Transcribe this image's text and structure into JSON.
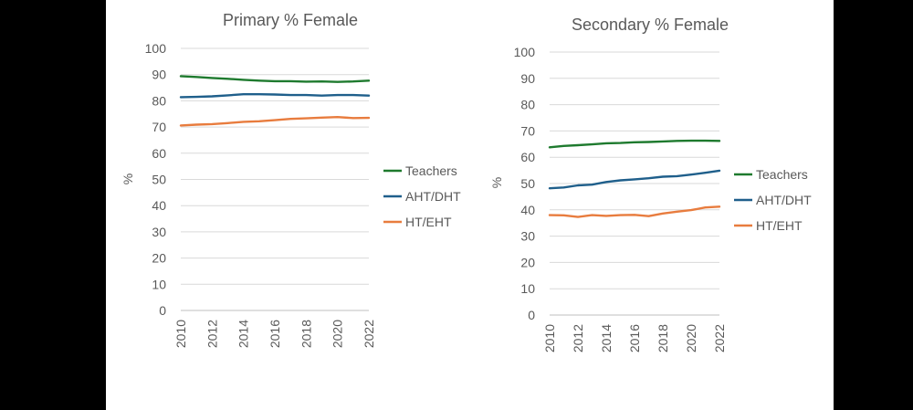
{
  "chart_data": [
    {
      "type": "line",
      "title": "Primary % Female",
      "xlabel": "",
      "ylabel": "%",
      "ylim": [
        0,
        100
      ],
      "yticks": [
        "0",
        "10",
        "20",
        "30",
        "40",
        "50",
        "60",
        "70",
        "80",
        "90",
        "100"
      ],
      "xlim": [
        2010,
        2022
      ],
      "xticks": [
        "2010",
        "2012",
        "2014",
        "2016",
        "2018",
        "2020",
        "2022"
      ],
      "grid": true,
      "legend": "right",
      "x": [
        2010,
        2011,
        2012,
        2013,
        2014,
        2015,
        2016,
        2017,
        2018,
        2019,
        2020,
        2021,
        2022
      ],
      "series": [
        {
          "name": "Teachers",
          "color": "#1e7a2e",
          "values": [
            89.4,
            89.1,
            88.7,
            88.4,
            88.0,
            87.7,
            87.5,
            87.5,
            87.3,
            87.4,
            87.2,
            87.4,
            87.7
          ]
        },
        {
          "name": "AHT/DHT",
          "color": "#1f5f8b",
          "values": [
            81.4,
            81.5,
            81.7,
            82.1,
            82.5,
            82.5,
            82.4,
            82.2,
            82.2,
            82.0,
            82.2,
            82.2,
            82.0
          ]
        },
        {
          "name": "HT/EHT",
          "color": "#e87c3e",
          "values": [
            70.6,
            70.9,
            71.1,
            71.5,
            72.0,
            72.2,
            72.6,
            73.1,
            73.3,
            73.6,
            73.8,
            73.4,
            73.5
          ]
        }
      ]
    },
    {
      "type": "line",
      "title": "Secondary % Female",
      "xlabel": "",
      "ylabel": "%",
      "ylim": [
        0,
        100
      ],
      "yticks": [
        "0",
        "10",
        "20",
        "30",
        "40",
        "50",
        "60",
        "70",
        "80",
        "90",
        "100"
      ],
      "xlim": [
        2010,
        2022
      ],
      "xticks": [
        "2010",
        "2012",
        "2014",
        "2016",
        "2018",
        "2020",
        "2022"
      ],
      "grid": true,
      "legend": "right",
      "x": [
        2010,
        2011,
        2012,
        2013,
        2014,
        2015,
        2016,
        2017,
        2018,
        2019,
        2020,
        2021,
        2022
      ],
      "series": [
        {
          "name": "Teachers",
          "color": "#1e7a2e",
          "values": [
            63.8,
            64.3,
            64.6,
            64.9,
            65.3,
            65.4,
            65.7,
            65.8,
            66.0,
            66.2,
            66.3,
            66.3,
            66.2
          ]
        },
        {
          "name": "AHT/DHT",
          "color": "#1f5f8b",
          "values": [
            48.2,
            48.5,
            49.3,
            49.6,
            50.6,
            51.2,
            51.6,
            52.0,
            52.6,
            52.8,
            53.4,
            54.1,
            54.9
          ]
        },
        {
          "name": "HT/EHT",
          "color": "#e87c3e",
          "values": [
            38.0,
            37.9,
            37.3,
            38.0,
            37.7,
            38.0,
            38.1,
            37.6,
            38.6,
            39.3,
            39.9,
            40.9,
            41.2
          ]
        }
      ]
    }
  ]
}
